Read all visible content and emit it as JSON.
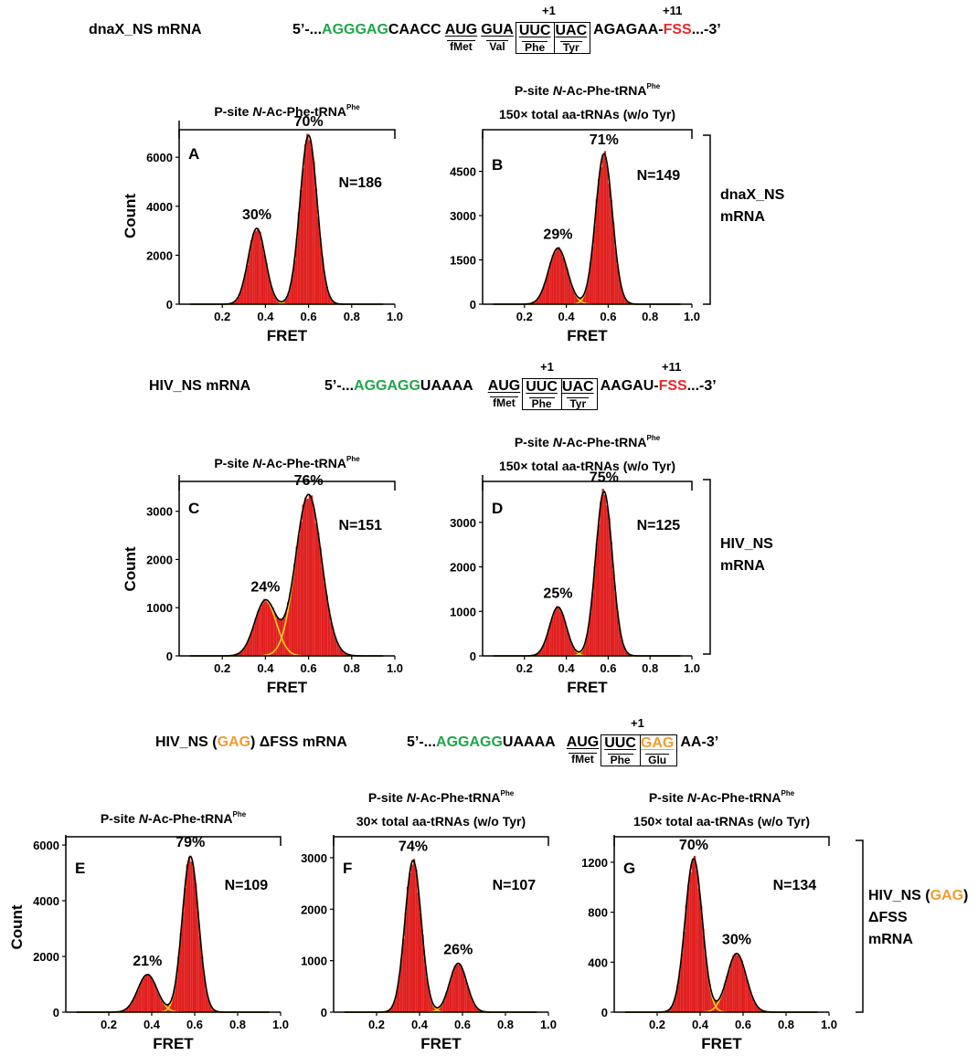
{
  "colors": {
    "bars": "#e11f1f",
    "fit_total": "#000000",
    "fit_component": "#f2d21b",
    "shine_dark": "#1fa64a",
    "fss_red": "#e8282a",
    "gag_orange": "#f29b2f"
  },
  "sequences": [
    {
      "name": "dnaX_NS mRNA",
      "prefix": "5’-...",
      "sd": "AGGGAG",
      "spacer": "CAACC",
      "codons": [
        {
          "nt": "AUG",
          "aa": "fMet"
        },
        {
          "nt": "GUA",
          "aa": "Val"
        },
        {
          "nt": "UUC",
          "aa": "Phe"
        },
        {
          "nt": "UAC",
          "aa": "Tyr"
        }
      ],
      "after": "AGAGAA-",
      "fss": "FSS",
      "suffix": "...-3’",
      "marker_plus1": "+1",
      "marker_plus11": "+11"
    },
    {
      "name": "HIV_NS mRNA",
      "prefix": "5’-...",
      "sd": "AGGAGG",
      "spacer": "UAAAA",
      "codons": [
        {
          "nt": "AUG",
          "aa": "fMet"
        },
        {
          "nt": "UUC",
          "aa": "Phe"
        },
        {
          "nt": "UAC",
          "aa": "Tyr"
        }
      ],
      "after": "AAGAU-",
      "fss": "FSS",
      "suffix": "...-3’",
      "marker_plus1": "+1",
      "marker_plus11": "+11"
    },
    {
      "name_pre": "HIV_NS (",
      "name_gag": "GAG",
      "name_post": ") ΔFSS mRNA",
      "prefix": "5’-...",
      "sd": "AGGAGG",
      "spacer": "UAAAA",
      "codons": [
        {
          "nt": "AUG",
          "aa": "fMet"
        },
        {
          "nt": "UUC",
          "aa": "Phe"
        },
        {
          "nt": "GAG",
          "aa": "Glu"
        }
      ],
      "after": "AA-3’",
      "marker_plus1": "+1"
    }
  ],
  "row_labels": [
    {
      "lines": [
        "dnaX_NS",
        "mRNA"
      ]
    },
    {
      "lines": [
        "HIV_NS",
        "mRNA"
      ]
    },
    {
      "lines_gag": [
        "HIV_NS (",
        "GAG",
        ")"
      ],
      "lines": [
        "ΔFSS",
        "mRNA"
      ]
    }
  ],
  "chart_data": [
    {
      "type": "bar",
      "panel": "A",
      "header": [
        "P-site N-Ac-Phe-tRNA^Phe"
      ],
      "xlabel": "FRET",
      "ylabel": "Count",
      "xlim": [
        0,
        1.0
      ],
      "ylim": [
        0,
        7200
      ],
      "xticks": [
        0.2,
        0.4,
        0.6,
        0.8,
        1.0
      ],
      "yticks": [
        0,
        2000,
        4000,
        6000
      ],
      "n_label": "N=186",
      "peaks": [
        {
          "center": 0.36,
          "height": 3100,
          "sigma": 0.04,
          "label": "30%"
        },
        {
          "center": 0.6,
          "height": 6900,
          "sigma": 0.04,
          "label": "70%"
        }
      ]
    },
    {
      "type": "bar",
      "panel": "B",
      "header": [
        "P-site N-Ac-Phe-tRNA^Phe",
        "150× total aa-tRNAs (w/o Tyr)"
      ],
      "xlabel": "FRET",
      "ylabel": "",
      "xlim": [
        0,
        1.0
      ],
      "ylim": [
        0,
        5600
      ],
      "xticks": [
        0.2,
        0.4,
        0.6,
        0.8,
        1.0
      ],
      "yticks": [
        0,
        1500,
        3000,
        4500
      ],
      "n_label": "N=149",
      "peaks": [
        {
          "center": 0.36,
          "height": 1900,
          "sigma": 0.045,
          "label": "29%"
        },
        {
          "center": 0.58,
          "height": 5100,
          "sigma": 0.04,
          "label": "71%"
        }
      ]
    },
    {
      "type": "bar",
      "panel": "C",
      "header": [
        "P-site N-Ac-Phe-tRNA^Phe"
      ],
      "xlabel": "FRET",
      "ylabel": "Count",
      "xlim": [
        0,
        1.0
      ],
      "ylim": [
        0,
        3600
      ],
      "xticks": [
        0.2,
        0.4,
        0.6,
        0.8,
        1.0
      ],
      "yticks": [
        0,
        1000,
        2000,
        3000
      ],
      "n_label": "N=151",
      "peaks": [
        {
          "center": 0.4,
          "height": 1150,
          "sigma": 0.05,
          "label": "24%"
        },
        {
          "center": 0.6,
          "height": 3350,
          "sigma": 0.06,
          "label": "76%"
        }
      ]
    },
    {
      "type": "bar",
      "panel": "D",
      "header": [
        "P-site N-Ac-Phe-tRNA^Phe",
        "150× total aa-tRNAs (w/o Tyr)"
      ],
      "xlabel": "FRET",
      "ylabel": "",
      "xlim": [
        0,
        1.0
      ],
      "ylim": [
        0,
        3900
      ],
      "xticks": [
        0.2,
        0.4,
        0.6,
        0.8,
        1.0
      ],
      "yticks": [
        0,
        1000,
        2000,
        3000
      ],
      "n_label": "N=125",
      "peaks": [
        {
          "center": 0.36,
          "height": 1100,
          "sigma": 0.04,
          "label": "25%"
        },
        {
          "center": 0.58,
          "height": 3700,
          "sigma": 0.04,
          "label": "75%"
        }
      ]
    },
    {
      "type": "bar",
      "panel": "E",
      "header": [
        "P-site N-Ac-Phe-tRNA^Phe"
      ],
      "xlabel": "FRET",
      "ylabel": "Count",
      "xlim": [
        0,
        1.0
      ],
      "ylim": [
        0,
        6100
      ],
      "xticks": [
        0.2,
        0.4,
        0.6,
        0.8,
        1.0
      ],
      "yticks": [
        0,
        2000,
        4000,
        6000
      ],
      "n_label": "N=109",
      "peaks": [
        {
          "center": 0.38,
          "height": 1350,
          "sigma": 0.045,
          "label": "21%"
        },
        {
          "center": 0.58,
          "height": 5600,
          "sigma": 0.038,
          "label": "79%"
        }
      ]
    },
    {
      "type": "bar",
      "panel": "F",
      "header": [
        "P-site N-Ac-Phe-tRNA^Phe",
        "30× total aa-tRNAs (w/o Tyr)"
      ],
      "xlabel": "FRET",
      "ylabel": "",
      "xlim": [
        0,
        1.0
      ],
      "ylim": [
        0,
        3300
      ],
      "xticks": [
        0.2,
        0.4,
        0.6,
        0.8,
        1.0
      ],
      "yticks": [
        0,
        1000,
        2000,
        3000
      ],
      "n_label": "N=107",
      "peaks": [
        {
          "center": 0.37,
          "height": 2950,
          "sigma": 0.038,
          "label": "74%"
        },
        {
          "center": 0.58,
          "height": 950,
          "sigma": 0.04,
          "label": "26%"
        }
      ]
    },
    {
      "type": "bar",
      "panel": "G",
      "header": [
        "P-site N-Ac-Phe-tRNA^Phe",
        "150× total aa-tRNAs (w/o Tyr)"
      ],
      "xlabel": "FRET",
      "ylabel": "",
      "xlim": [
        0,
        1.0
      ],
      "ylim": [
        0,
        1360
      ],
      "xticks": [
        0.2,
        0.4,
        0.6,
        0.8,
        1.0
      ],
      "yticks": [
        0,
        400,
        800,
        1200
      ],
      "n_label": "N=134",
      "peaks": [
        {
          "center": 0.37,
          "height": 1230,
          "sigma": 0.04,
          "label": "70%"
        },
        {
          "center": 0.57,
          "height": 470,
          "sigma": 0.045,
          "label": "30%"
        }
      ]
    }
  ]
}
